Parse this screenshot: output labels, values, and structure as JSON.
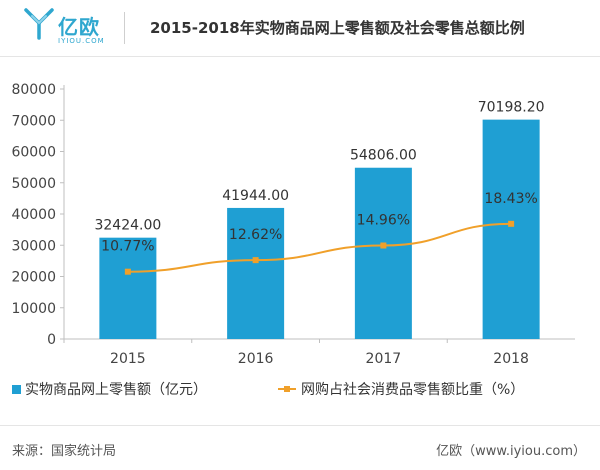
{
  "header": {
    "logo_name": "亿欧",
    "logo_sub": "IYIOU.COM",
    "title": "2015-2018年实物商品网上零售额及社会零售总额比例"
  },
  "colors": {
    "bar": "#1f9fd3",
    "line": "#f0a02a",
    "brand": "#2fa7cf"
  },
  "chart_data": {
    "type": "bar",
    "categories": [
      "2015",
      "2016",
      "2017",
      "2018"
    ],
    "series": [
      {
        "name": "实物商品网上零售额（亿元）",
        "type": "bar",
        "values": [
          32424.0,
          41944.0,
          54806.0,
          70198.2
        ],
        "labels": [
          "32424.00",
          "41944.00",
          "54806.00",
          "70198.20"
        ]
      },
      {
        "name": "网购占社会消费品零售额比重（%）",
        "type": "line",
        "values": [
          10.77,
          12.62,
          14.96,
          18.43
        ],
        "labels": [
          "10.77%",
          "12.62%",
          "14.96%",
          "18.43%"
        ]
      }
    ],
    "yticks": [
      "0",
      "10000",
      "20000",
      "30000",
      "40000",
      "50000",
      "60000",
      "70000",
      "80000"
    ],
    "ylim": [
      0,
      80000
    ],
    "grid": false,
    "legend_position": "bottom-left"
  },
  "footer": {
    "source": "来源：国家统计局",
    "brand": "亿欧（www.iyiou.com）"
  }
}
